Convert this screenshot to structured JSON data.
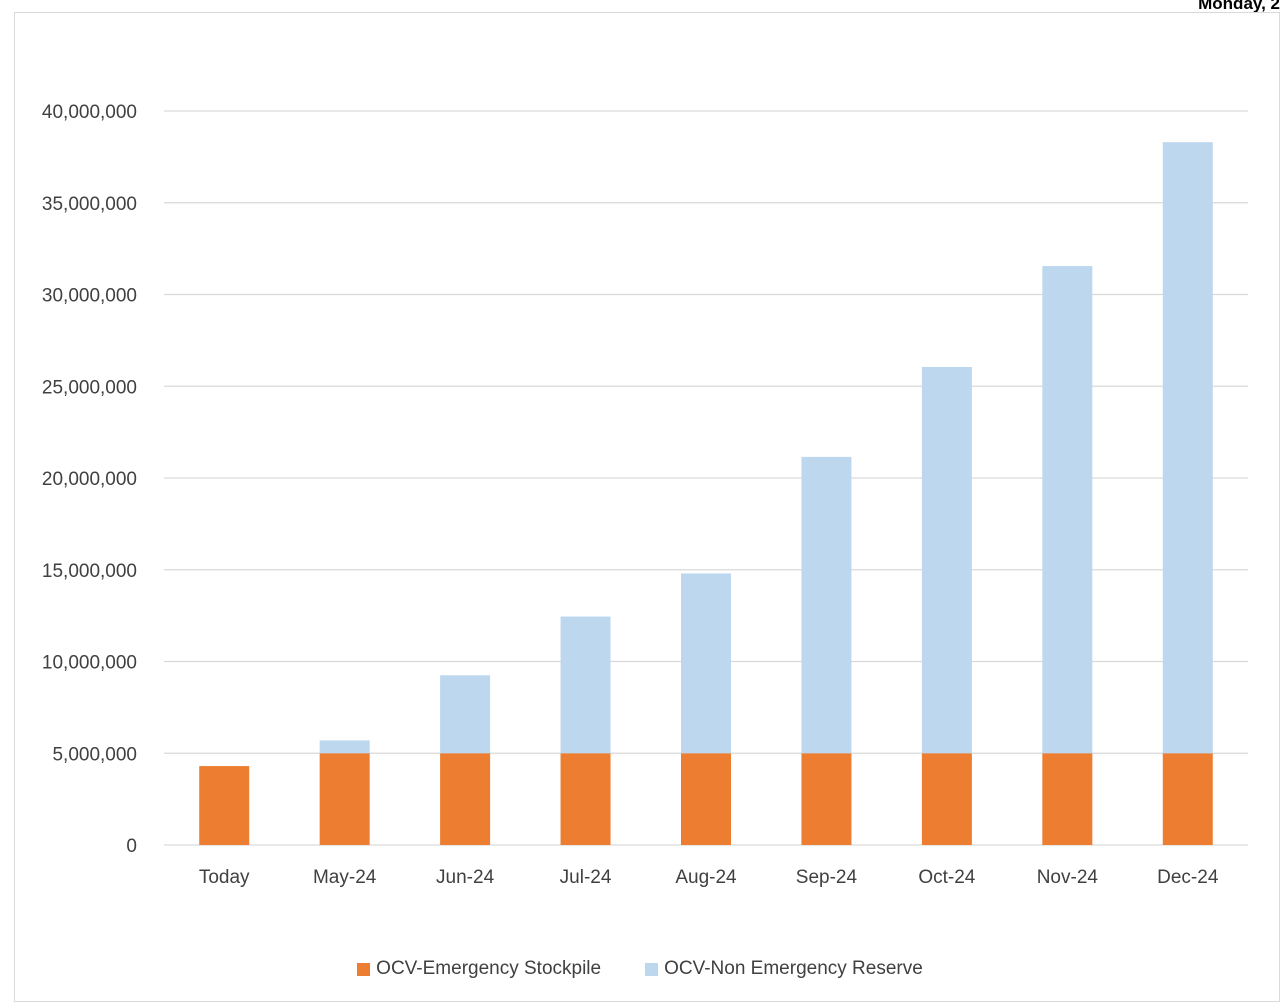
{
  "header": {
    "date_text": "Monday, 2"
  },
  "chart_data": {
    "type": "bar",
    "stacked": true,
    "categories": [
      "Today",
      "May-24",
      "Jun-24",
      "Jul-24",
      "Aug-24",
      "Sep-24",
      "Oct-24",
      "Nov-24",
      "Dec-24"
    ],
    "series": [
      {
        "name": "OCV-Emergency Stockpile",
        "color": "#ed7d31",
        "values": [
          4300000,
          5000000,
          5000000,
          5000000,
          5000000,
          5000000,
          5000000,
          5000000,
          5000000
        ]
      },
      {
        "name": "OCV-Non Emergency Reserve",
        "color": "#bdd7ee",
        "values": [
          0,
          700000,
          4250000,
          7450000,
          9800000,
          16150000,
          21050000,
          26550000,
          33300000
        ]
      }
    ],
    "ylim": [
      0,
      40000000
    ],
    "yticks": [
      "0",
      "5,000,000",
      "10,000,000",
      "15,000,000",
      "20,000,000",
      "25,000,000",
      "30,000,000",
      "35,000,000",
      "40,000,000"
    ],
    "ytick_values": [
      0,
      5000000,
      10000000,
      15000000,
      20000000,
      25000000,
      30000000,
      35000000,
      40000000
    ],
    "grid": true,
    "gridline_color": "#d9d9d9",
    "legend_position": "bottom"
  }
}
